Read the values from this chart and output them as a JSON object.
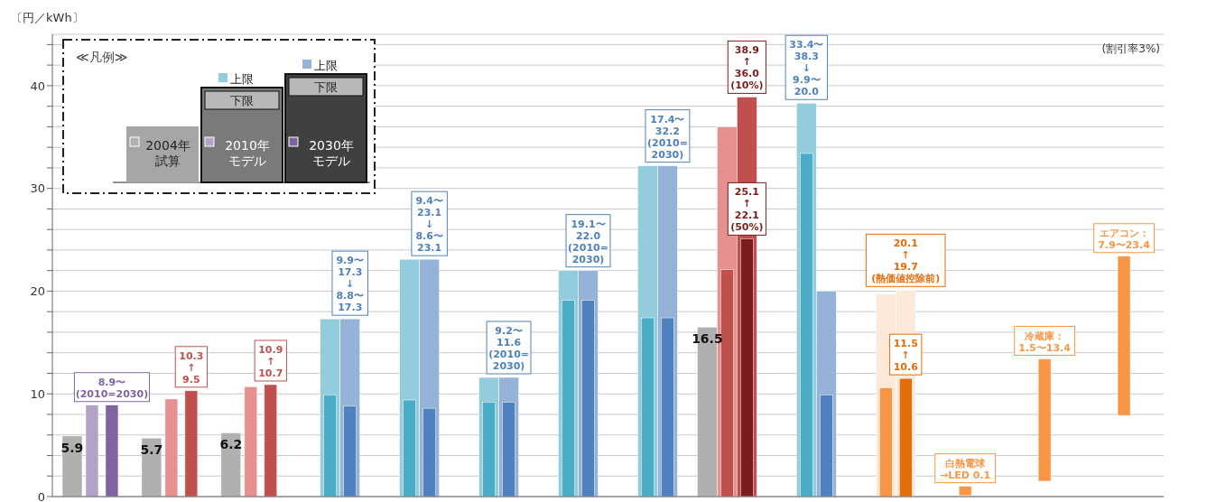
{
  "chart_data": {
    "type": "bar",
    "ylabel": "〔円／kWh〕",
    "legend_title": "≪凡例≫",
    "legend": "top left",
    "grid": "y",
    "annotations": [
      "(割引率3%)",
      "下限",
      "下限"
    ],
    "categories": [
      null,
      null,
      null,
      null,
      null,
      null,
      null,
      null,
      null,
      null,
      null,
      null,
      null,
      null
    ],
    "ylim": [
      0,
      45
    ],
    "yticks": [
      0,
      {
        "value": 2,
        "label": null
      },
      {
        "value": 4,
        "label": null
      },
      {
        "value": 6,
        "label": null
      },
      {
        "value": 8,
        "label": null
      },
      10,
      {
        "value": 12,
        "label": null
      },
      {
        "value": 14,
        "label": null
      },
      {
        "value": 16,
        "label": null
      },
      {
        "value": 18,
        "label": null
      },
      20,
      {
        "value": 22,
        "label": null
      },
      {
        "value": 24,
        "label": null
      },
      {
        "value": 26,
        "label": null
      },
      {
        "value": 28,
        "label": null
      },
      30,
      {
        "value": 32,
        "label": null
      },
      {
        "value": 34,
        "label": null
      },
      {
        "value": 36,
        "label": null
      },
      {
        "value": 38,
        "label": null
      },
      40,
      {
        "value": 42,
        "label": null
      },
      {
        "value": 44,
        "label": null
      }
    ],
    "series": [
      {
        "name": "2004年試算",
        "colors": [
          "#b0b0b0",
          "#b0b0b0",
          "#b0b0b0",
          null,
          null,
          null,
          null,
          null,
          "#b0b0b0",
          null,
          null,
          null,
          null,
          null
        ],
        "values": [
          5.9,
          5.7,
          6.2,
          null,
          null,
          null,
          null,
          null,
          16.5,
          null,
          null,
          null,
          null,
          null
        ],
        "value_labels": [
          "5.9",
          "5.7",
          "6.2",
          null,
          null,
          null,
          null,
          null,
          "16.5",
          null,
          null,
          null,
          null,
          null
        ]
      },
      {
        "name": "上限",
        "colors": [
          null,
          null,
          null,
          "#93cddd",
          "#93cddd",
          "#93cddd",
          "#93cddd",
          "#93cddd",
          "#e6908f",
          "#93cddd",
          "#fde9d9",
          null,
          null,
          null
        ],
        "values": [
          null,
          null,
          null,
          17.3,
          23.1,
          11.6,
          22.0,
          32.2,
          36.0,
          38.3,
          19.7,
          null,
          null,
          null
        ],
        "value_labels": [
          null,
          null,
          null,
          null,
          null,
          null,
          null,
          null,
          null,
          "33.4〜\n38.3\n↓\n9.9〜\n20.0",
          null,
          null,
          null,
          null
        ]
      },
      {
        "name": "2010年モデル",
        "colors": [
          "#b3a2c7",
          "#e6908f",
          "#e6908f",
          "#4bacc6",
          "#4bacc6",
          "#4bacc6",
          "#4bacc6",
          "#4bacc6",
          "#c0504d",
          "#4bacc6",
          "#f79646",
          "#f79646",
          "#f79646",
          "#f79646"
        ],
        "values": [
          8.9,
          9.5,
          10.7,
          9.9,
          9.4,
          9.2,
          19.1,
          17.4,
          22.1,
          33.4,
          10.6,
          0.9,
          11.9,
          15.5
        ],
        "base": [
          null,
          null,
          null,
          null,
          null,
          null,
          null,
          null,
          null,
          null,
          null,
          0.1,
          1.5,
          7.9
        ],
        "value_labels": [
          null,
          null,
          null,
          null,
          null,
          null,
          null,
          null,
          null,
          null,
          null,
          "白熱電球\n→LED 0.1",
          "冷蔵庫：\n1.5〜13.4",
          "エアコン：\n7.9〜23.4"
        ]
      },
      {
        "name": "上限",
        "colors": [
          null,
          null,
          null,
          "#95b3d7",
          "#95b3d7",
          "#95b3d7",
          "#95b3d7",
          "#95b3d7",
          "#c0504d",
          "#95b3d7",
          "#fde9d9",
          null,
          null,
          null
        ],
        "values": [
          null,
          null,
          null,
          17.3,
          23.1,
          11.6,
          22.0,
          32.2,
          38.9,
          20.0,
          20.1,
          null,
          null,
          null
        ],
        "value_labels": [
          null,
          null,
          null,
          "9.9〜\n17.3\n↓\n8.8〜\n17.3",
          "9.4〜\n23.1\n↓\n8.6〜\n23.1",
          "9.2〜\n11.6\n(2010=\n2030)",
          "19.1〜\n22.0\n(2010=\n2030)",
          "17.4〜\n32.2\n(2010=\n2030)",
          "38.9\n↑\n36.0\n(10%)",
          null,
          "20.1\n↑\n19.7\n(熱価値控除前)",
          null,
          null,
          null
        ]
      },
      {
        "name": "2030年モデル",
        "colors": [
          "#8064a2",
          "#c0504d",
          "#c0504d",
          "#4f81bd",
          "#4f81bd",
          "#4f81bd",
          "#4f81bd",
          "#4f81bd",
          "#7b1d1d",
          "#4f81bd",
          "#e46c0a",
          null,
          null,
          null
        ],
        "values": [
          8.9,
          10.3,
          10.9,
          8.8,
          8.6,
          9.2,
          19.1,
          17.4,
          25.1,
          9.9,
          11.5,
          null,
          null,
          null
        ],
        "value_labels": [
          "8.9〜\n(2010=2030)",
          "10.3\n↑\n9.5",
          "10.9\n↑\n10.7",
          null,
          null,
          null,
          null,
          null,
          "25.1\n↑\n22.1\n(50%)",
          null,
          "11.5\n↑\n10.6",
          null,
          null,
          null
        ]
      }
    ]
  }
}
